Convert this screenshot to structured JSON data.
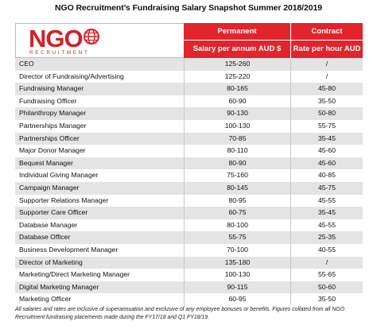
{
  "title": "NGO Recruitment’s Fundraising Salary Snapshot Summer 2018/2019",
  "logo": {
    "main": "NGO",
    "sub": "RECRUITMENT"
  },
  "columns": {
    "permanent": {
      "label": "Permanent",
      "unit": "Salary per annum AUD $"
    },
    "contract": {
      "label": "Contract",
      "unit": "Rate per hour AUD $"
    }
  },
  "rows": [
    {
      "role": "CEO",
      "permanent": "125-260",
      "contract": "/"
    },
    {
      "role": "Director of Fundraising/Advertising",
      "permanent": "125-220",
      "contract": "/"
    },
    {
      "role": "Fundraising Manager",
      "permanent": "80-165",
      "contract": "45-80"
    },
    {
      "role": "Fundraising Officer",
      "permanent": "60-90",
      "contract": "35-50"
    },
    {
      "role": "Philanthropy Manager",
      "permanent": "90-130",
      "contract": "50-80"
    },
    {
      "role": "Partnerships Manager",
      "permanent": "100-130",
      "contract": "55-75"
    },
    {
      "role": "Partnerships Officer",
      "permanent": "70-85",
      "contract": "35-45"
    },
    {
      "role": "Major Donor Manager",
      "permanent": "80-110",
      "contract": "45-60"
    },
    {
      "role": "Bequest Manager",
      "permanent": "80-90",
      "contract": "45-60"
    },
    {
      "role": "Individual Giving Manager",
      "permanent": "75-160",
      "contract": "40-85"
    },
    {
      "role": "Campaign Manager",
      "permanent": "80-145",
      "contract": "45-75"
    },
    {
      "role": "Supporter Relations Manager",
      "permanent": "80-95",
      "contract": "45-55"
    },
    {
      "role": "Supporter Care Officer",
      "permanent": "60-75",
      "contract": "35-45"
    },
    {
      "role": "Database Manager",
      "permanent": "80-100",
      "contract": "45-55"
    },
    {
      "role": "Database Officer",
      "permanent": "55-75",
      "contract": "25-35"
    },
    {
      "role": "Business Development Manager",
      "permanent": "70-100",
      "contract": "40-55"
    },
    {
      "role": "Director of Marketing",
      "permanent": "135-180",
      "contract": "/"
    },
    {
      "role": "Marketing/Direct Marketing Manager",
      "permanent": "100-130",
      "contract": "55-65"
    },
    {
      "role": "Digital Marketing Manager",
      "permanent": "90-115",
      "contract": "50-60"
    },
    {
      "role": "Marketing Officer",
      "permanent": "60-95",
      "contract": "35-50"
    }
  ],
  "footnote": "All salaries and rates are inclusive of superannuation and exclusive of any employee bonuses or benefits. Figures collated from all NGO Recruitment fundraising placements made during the FY17/18 and Q1 FY18/19.",
  "colors": {
    "brand_red": "#e2242c",
    "logo_red": "#d3202a",
    "row_shade": "#e4e4e4"
  },
  "icons": [
    "globe-icon"
  ]
}
